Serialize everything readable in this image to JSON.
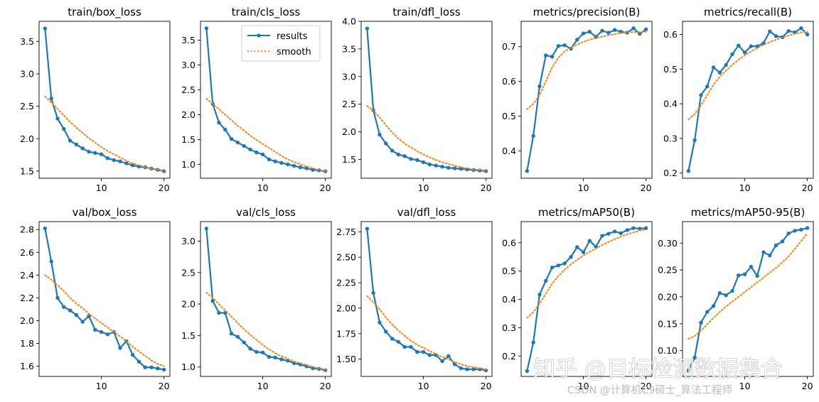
{
  "colors": {
    "results": "#1f77b4",
    "smooth": "#ff7f0e",
    "axis": "#000000",
    "background": "#ffffff"
  },
  "legend": {
    "entries": [
      "results",
      "smooth"
    ],
    "placement": "top-right of train/cls_loss"
  },
  "chart_data": [
    {
      "type": "line",
      "title": "train/box_loss",
      "x": [
        1,
        2,
        3,
        4,
        5,
        6,
        7,
        8,
        9,
        10,
        11,
        12,
        13,
        14,
        15,
        16,
        17,
        18,
        19,
        20
      ],
      "series": [
        {
          "name": "results",
          "values": [
            3.7,
            2.62,
            2.31,
            2.15,
            1.97,
            1.91,
            1.85,
            1.8,
            1.78,
            1.76,
            1.7,
            1.67,
            1.65,
            1.62,
            1.59,
            1.57,
            1.56,
            1.54,
            1.52,
            1.5
          ]
        },
        {
          "name": "smooth",
          "values": [
            2.65,
            2.56,
            2.46,
            2.36,
            2.26,
            2.17,
            2.09,
            2.01,
            1.94,
            1.87,
            1.81,
            1.76,
            1.71,
            1.66,
            1.62,
            1.59,
            1.56,
            1.54,
            1.52,
            1.51
          ]
        }
      ],
      "xticks": [
        10,
        20
      ],
      "xlim": [
        0.05,
        20.95
      ],
      "yticks": [
        1.5,
        2.0,
        2.5,
        3.0,
        3.5
      ],
      "ytick_labels": [
        "1.5",
        "2.0",
        "2.5",
        "3.0",
        "3.5"
      ],
      "ylim": [
        1.39,
        3.81
      ]
    },
    {
      "type": "line",
      "title": "train/cls_loss",
      "x": [
        1,
        2,
        3,
        4,
        5,
        6,
        7,
        8,
        9,
        10,
        11,
        12,
        13,
        14,
        15,
        16,
        17,
        18,
        19,
        20
      ],
      "series": [
        {
          "name": "results",
          "values": [
            3.74,
            2.22,
            1.84,
            1.7,
            1.51,
            1.44,
            1.37,
            1.3,
            1.24,
            1.2,
            1.1,
            1.06,
            1.03,
            1.0,
            0.97,
            0.94,
            0.92,
            0.89,
            0.88,
            0.86
          ]
        },
        {
          "name": "smooth",
          "values": [
            2.32,
            2.22,
            2.11,
            2.0,
            1.89,
            1.78,
            1.68,
            1.58,
            1.49,
            1.41,
            1.33,
            1.25,
            1.17,
            1.1,
            1.05,
            1.0,
            0.96,
            0.92,
            0.89,
            0.86
          ]
        }
      ],
      "xticks": [
        10,
        20
      ],
      "xlim": [
        0.05,
        20.95
      ],
      "yticks": [
        1.0,
        1.5,
        2.0,
        2.5,
        3.0,
        3.5
      ],
      "ytick_labels": [
        "1.0",
        "1.5",
        "2.0",
        "2.5",
        "3.0",
        "3.5"
      ],
      "ylim": [
        0.72,
        3.88
      ]
    },
    {
      "type": "line",
      "title": "train/dfl_loss",
      "x": [
        1,
        2,
        3,
        4,
        5,
        6,
        7,
        8,
        9,
        10,
        11,
        12,
        13,
        14,
        15,
        16,
        17,
        18,
        19,
        20
      ],
      "series": [
        {
          "name": "results",
          "values": [
            3.87,
            2.39,
            1.95,
            1.79,
            1.66,
            1.59,
            1.56,
            1.51,
            1.49,
            1.45,
            1.41,
            1.39,
            1.37,
            1.35,
            1.34,
            1.33,
            1.32,
            1.31,
            1.3,
            1.29
          ]
        },
        {
          "name": "smooth",
          "values": [
            2.47,
            2.38,
            2.26,
            2.12,
            1.99,
            1.88,
            1.79,
            1.72,
            1.65,
            1.59,
            1.54,
            1.49,
            1.45,
            1.42,
            1.39,
            1.36,
            1.34,
            1.32,
            1.31,
            1.3
          ]
        }
      ],
      "xticks": [
        10,
        20
      ],
      "xlim": [
        0.05,
        20.95
      ],
      "yticks": [
        1.5,
        2.0,
        2.5,
        3.0,
        3.5,
        4.0
      ],
      "ytick_labels": [
        "1.5",
        "2.0",
        "2.5",
        "3.0",
        "3.5",
        "4.0"
      ],
      "ylim": [
        1.16,
        4.0
      ]
    },
    {
      "type": "line",
      "title": "metrics/precision(B)",
      "x": [
        1,
        2,
        3,
        4,
        5,
        6,
        7,
        8,
        9,
        10,
        11,
        12,
        13,
        14,
        15,
        16,
        17,
        18,
        19,
        20
      ],
      "series": [
        {
          "name": "results",
          "values": [
            0.342,
            0.443,
            0.586,
            0.675,
            0.671,
            0.702,
            0.704,
            0.694,
            0.72,
            0.738,
            0.743,
            0.728,
            0.746,
            0.74,
            0.748,
            0.743,
            0.74,
            0.753,
            0.737,
            0.75
          ]
        },
        {
          "name": "smooth",
          "values": [
            0.52,
            0.535,
            0.56,
            0.6,
            0.64,
            0.668,
            0.686,
            0.697,
            0.706,
            0.714,
            0.72,
            0.725,
            0.729,
            0.733,
            0.736,
            0.739,
            0.741,
            0.742,
            0.742,
            0.743
          ]
        }
      ],
      "xticks": [
        10,
        20
      ],
      "xlim": [
        0.05,
        20.95
      ],
      "yticks": [
        0.4,
        0.5,
        0.6,
        0.7
      ],
      "ytick_labels": [
        "0.4",
        "0.5",
        "0.6",
        "0.7"
      ],
      "ylim": [
        0.321,
        0.773
      ]
    },
    {
      "type": "line",
      "title": "metrics/recall(B)",
      "x": [
        1,
        2,
        3,
        4,
        5,
        6,
        7,
        8,
        9,
        10,
        11,
        12,
        13,
        14,
        15,
        16,
        17,
        18,
        19,
        20
      ],
      "series": [
        {
          "name": "results",
          "values": [
            0.206,
            0.295,
            0.425,
            0.45,
            0.505,
            0.49,
            0.512,
            0.543,
            0.568,
            0.548,
            0.566,
            0.566,
            0.575,
            0.609,
            0.595,
            0.592,
            0.61,
            0.606,
            0.618,
            0.6
          ]
        },
        {
          "name": "smooth",
          "values": [
            0.355,
            0.37,
            0.395,
            0.425,
            0.455,
            0.478,
            0.496,
            0.512,
            0.527,
            0.54,
            0.551,
            0.561,
            0.57,
            0.578,
            0.585,
            0.591,
            0.597,
            0.602,
            0.606,
            0.608
          ]
        }
      ],
      "xticks": [
        10,
        20
      ],
      "xlim": [
        0.05,
        20.95
      ],
      "yticks": [
        0.2,
        0.3,
        0.4,
        0.5,
        0.6
      ],
      "ytick_labels": [
        "0.2",
        "0.3",
        "0.4",
        "0.5",
        "0.6"
      ],
      "ylim": [
        0.185,
        0.638
      ]
    },
    {
      "type": "line",
      "title": "val/box_loss",
      "x": [
        1,
        2,
        3,
        4,
        5,
        6,
        7,
        8,
        9,
        10,
        11,
        12,
        13,
        14,
        15,
        16,
        17,
        18,
        19,
        20
      ],
      "series": [
        {
          "name": "results",
          "values": [
            2.81,
            2.52,
            2.2,
            2.12,
            2.09,
            2.05,
            1.99,
            2.04,
            1.92,
            1.9,
            1.88,
            1.9,
            1.76,
            1.82,
            1.7,
            1.64,
            1.59,
            1.59,
            1.58,
            1.57
          ]
        },
        {
          "name": "smooth",
          "values": [
            2.4,
            2.36,
            2.31,
            2.26,
            2.2,
            2.15,
            2.11,
            2.06,
            2.02,
            1.98,
            1.94,
            1.9,
            1.86,
            1.82,
            1.77,
            1.73,
            1.69,
            1.65,
            1.62,
            1.6
          ]
        }
      ],
      "xticks": [
        10,
        20
      ],
      "xlim": [
        0.05,
        20.95
      ],
      "yticks": [
        1.6,
        1.8,
        2.0,
        2.2,
        2.4,
        2.6,
        2.8
      ],
      "ytick_labels": [
        "1.6",
        "1.8",
        "2.0",
        "2.2",
        "2.4",
        "2.6",
        "2.8"
      ],
      "ylim": [
        1.51,
        2.87
      ]
    },
    {
      "type": "line",
      "title": "val/cls_loss",
      "x": [
        1,
        2,
        3,
        4,
        5,
        6,
        7,
        8,
        9,
        10,
        11,
        12,
        13,
        14,
        15,
        16,
        17,
        18,
        19,
        20
      ],
      "series": [
        {
          "name": "results",
          "values": [
            3.2,
            2.05,
            1.86,
            1.86,
            1.53,
            1.48,
            1.39,
            1.29,
            1.24,
            1.23,
            1.16,
            1.15,
            1.12,
            1.1,
            1.06,
            1.04,
            1.01,
            0.98,
            0.97,
            0.95
          ]
        },
        {
          "name": "smooth",
          "values": [
            2.18,
            2.1,
            2.0,
            1.9,
            1.8,
            1.7,
            1.6,
            1.51,
            1.43,
            1.35,
            1.28,
            1.22,
            1.17,
            1.13,
            1.09,
            1.06,
            1.03,
            1.0,
            0.98,
            0.96
          ]
        }
      ],
      "xticks": [
        10,
        20
      ],
      "xlim": [
        0.05,
        20.95
      ],
      "yticks": [
        1.0,
        1.5,
        2.0,
        2.5,
        3.0
      ],
      "ytick_labels": [
        "1.0",
        "1.5",
        "2.0",
        "2.5",
        "3.0"
      ],
      "ylim": [
        0.85,
        3.31
      ]
    },
    {
      "type": "line",
      "title": "val/dfl_loss",
      "x": [
        1,
        2,
        3,
        4,
        5,
        6,
        7,
        8,
        9,
        10,
        11,
        12,
        13,
        14,
        15,
        16,
        17,
        18,
        19,
        20
      ],
      "series": [
        {
          "name": "results",
          "values": [
            2.78,
            2.15,
            1.86,
            1.77,
            1.7,
            1.67,
            1.62,
            1.62,
            1.57,
            1.57,
            1.54,
            1.54,
            1.48,
            1.53,
            1.45,
            1.41,
            1.4,
            1.4,
            1.4,
            1.39
          ]
        },
        {
          "name": "smooth",
          "values": [
            2.12,
            2.06,
            1.99,
            1.91,
            1.84,
            1.78,
            1.73,
            1.68,
            1.64,
            1.61,
            1.58,
            1.55,
            1.52,
            1.5,
            1.47,
            1.45,
            1.43,
            1.42,
            1.41,
            1.4
          ]
        }
      ],
      "xticks": [
        10,
        20
      ],
      "xlim": [
        0.05,
        20.95
      ],
      "yticks": [
        1.5,
        1.75,
        2.0,
        2.25,
        2.5,
        2.75
      ],
      "ytick_labels": [
        "1.50",
        "1.75",
        "2.00",
        "2.25",
        "2.50",
        "2.75"
      ],
      "ylim": [
        1.33,
        2.85
      ]
    },
    {
      "type": "line",
      "title": "metrics/mAP50(B)",
      "x": [
        1,
        2,
        3,
        4,
        5,
        6,
        7,
        8,
        9,
        10,
        11,
        12,
        13,
        14,
        15,
        16,
        17,
        18,
        19,
        20
      ],
      "series": [
        {
          "name": "results",
          "values": [
            0.147,
            0.248,
            0.417,
            0.466,
            0.513,
            0.52,
            0.527,
            0.55,
            0.585,
            0.567,
            0.607,
            0.586,
            0.625,
            0.632,
            0.64,
            0.634,
            0.645,
            0.652,
            0.65,
            0.652
          ]
        },
        {
          "name": "smooth",
          "values": [
            0.335,
            0.355,
            0.385,
            0.42,
            0.455,
            0.483,
            0.505,
            0.524,
            0.54,
            0.555,
            0.568,
            0.58,
            0.592,
            0.603,
            0.613,
            0.622,
            0.63,
            0.637,
            0.643,
            0.648
          ]
        }
      ],
      "xticks": [
        10,
        20
      ],
      "xlim": [
        0.05,
        20.95
      ],
      "yticks": [
        0.2,
        0.3,
        0.4,
        0.5,
        0.6
      ],
      "ytick_labels": [
        "0.2",
        "0.3",
        "0.4",
        "0.5",
        "0.6"
      ],
      "ylim": [
        0.128,
        0.675
      ]
    },
    {
      "type": "line",
      "title": "metrics/mAP50-95(B)",
      "x": [
        1,
        2,
        3,
        4,
        5,
        6,
        7,
        8,
        9,
        10,
        11,
        12,
        13,
        14,
        15,
        16,
        17,
        18,
        19,
        20
      ],
      "series": [
        {
          "name": "results",
          "values": [
            0.063,
            0.087,
            0.152,
            0.172,
            0.183,
            0.207,
            0.203,
            0.211,
            0.24,
            0.242,
            0.256,
            0.239,
            0.283,
            0.277,
            0.296,
            0.303,
            0.318,
            0.323,
            0.325,
            0.328
          ]
        },
        {
          "name": "smooth",
          "values": [
            0.122,
            0.127,
            0.137,
            0.149,
            0.161,
            0.172,
            0.182,
            0.191,
            0.2,
            0.209,
            0.218,
            0.227,
            0.236,
            0.245,
            0.254,
            0.264,
            0.275,
            0.289,
            0.304,
            0.318
          ]
        }
      ],
      "xticks": [
        10,
        20
      ],
      "xlim": [
        0.05,
        20.95
      ],
      "yticks": [
        0.1,
        0.15,
        0.2,
        0.25,
        0.3
      ],
      "ytick_labels": [
        "0.10",
        "0.15",
        "0.20",
        "0.25",
        "0.30"
      ],
      "ylim": [
        0.052,
        0.34
      ]
    }
  ],
  "watermark": {
    "main_text": "知乎 @目标检测数据集合",
    "sub_text": "CSDN @计算机C9硕士_算法工程师"
  }
}
